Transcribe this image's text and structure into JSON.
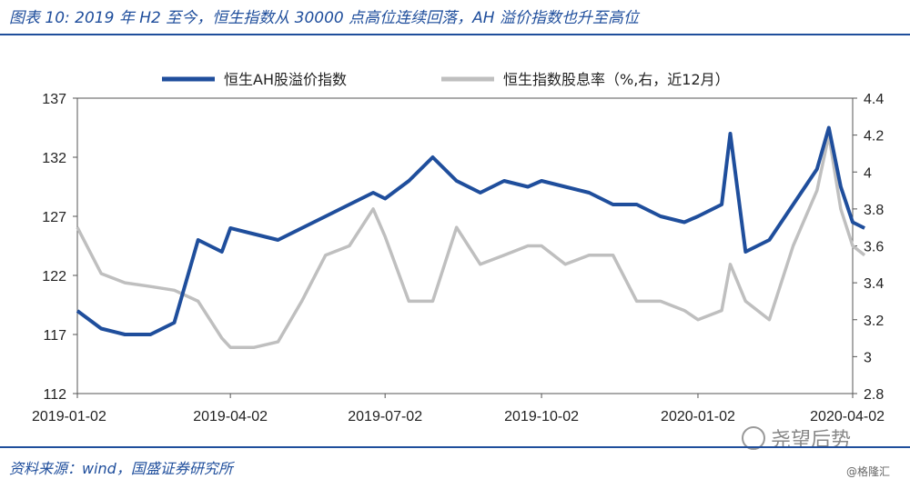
{
  "figure": {
    "title": "图表 10:  2019 年 H2 至今，恒生指数从 30000 点高位连续回落，AH 溢价指数也升至高位",
    "source": "资料来源：wind，国盛证券研究所",
    "watermark": "尧望后势",
    "credit": "@格隆汇"
  },
  "chart_data": {
    "type": "line",
    "title": "",
    "xlabel": "",
    "ylabel": "",
    "grid": false,
    "legend_position": "top-center",
    "x_ticks": [
      "2019-01-02",
      "2019-04-02",
      "2019-07-02",
      "2019-10-02",
      "2020-01-02",
      "2020-04-02"
    ],
    "x": [
      "2019-01-02",
      "2019-01-16",
      "2019-01-30",
      "2019-02-14",
      "2019-02-28",
      "2019-03-14",
      "2019-03-28",
      "2019-04-02",
      "2019-04-16",
      "2019-04-30",
      "2019-05-14",
      "2019-05-28",
      "2019-06-11",
      "2019-06-25",
      "2019-07-02",
      "2019-07-16",
      "2019-07-30",
      "2019-08-13",
      "2019-08-27",
      "2019-09-10",
      "2019-09-24",
      "2019-10-02",
      "2019-10-16",
      "2019-10-30",
      "2019-11-13",
      "2019-11-27",
      "2019-12-11",
      "2019-12-25",
      "2020-01-02",
      "2020-01-16",
      "2020-01-21",
      "2020-01-30",
      "2020-02-13",
      "2020-02-27",
      "2020-03-12",
      "2020-03-19",
      "2020-03-26",
      "2020-04-02",
      "2020-04-09"
    ],
    "y_left": {
      "ticks": [
        112,
        117,
        122,
        127,
        132,
        137
      ],
      "range": [
        112,
        137
      ]
    },
    "y_right": {
      "ticks": [
        2.8,
        3,
        3.2,
        3.4,
        3.6,
        3.8,
        4,
        4.2,
        4.4
      ],
      "range": [
        2.8,
        4.4
      ],
      "label": "%,右"
    },
    "series": [
      {
        "name": "恒生AH股溢价指数",
        "axis": "left",
        "color": "#1f4e9c",
        "values": [
          119,
          117.5,
          117,
          117,
          118,
          125,
          124,
          126,
          125.5,
          125,
          126,
          127,
          128,
          129,
          128.5,
          130,
          132,
          130,
          129,
          130,
          129.5,
          130,
          129.5,
          129,
          128,
          128,
          127,
          126.5,
          127,
          128,
          134,
          124,
          125,
          128,
          131,
          134.5,
          129.5,
          126.5,
          126
        ]
      },
      {
        "name": "恒生指数股息率（%,右，近12月）",
        "axis": "right",
        "color": "#bfbfbf",
        "values": [
          3.7,
          3.45,
          3.4,
          3.38,
          3.36,
          3.3,
          3.1,
          3.05,
          3.05,
          3.08,
          3.3,
          3.55,
          3.6,
          3.8,
          3.65,
          3.3,
          3.3,
          3.7,
          3.5,
          3.55,
          3.6,
          3.6,
          3.5,
          3.55,
          3.55,
          3.3,
          3.3,
          3.25,
          3.2,
          3.25,
          3.5,
          3.3,
          3.2,
          3.6,
          3.9,
          4.2,
          3.8,
          3.6,
          3.55
        ]
      }
    ]
  }
}
